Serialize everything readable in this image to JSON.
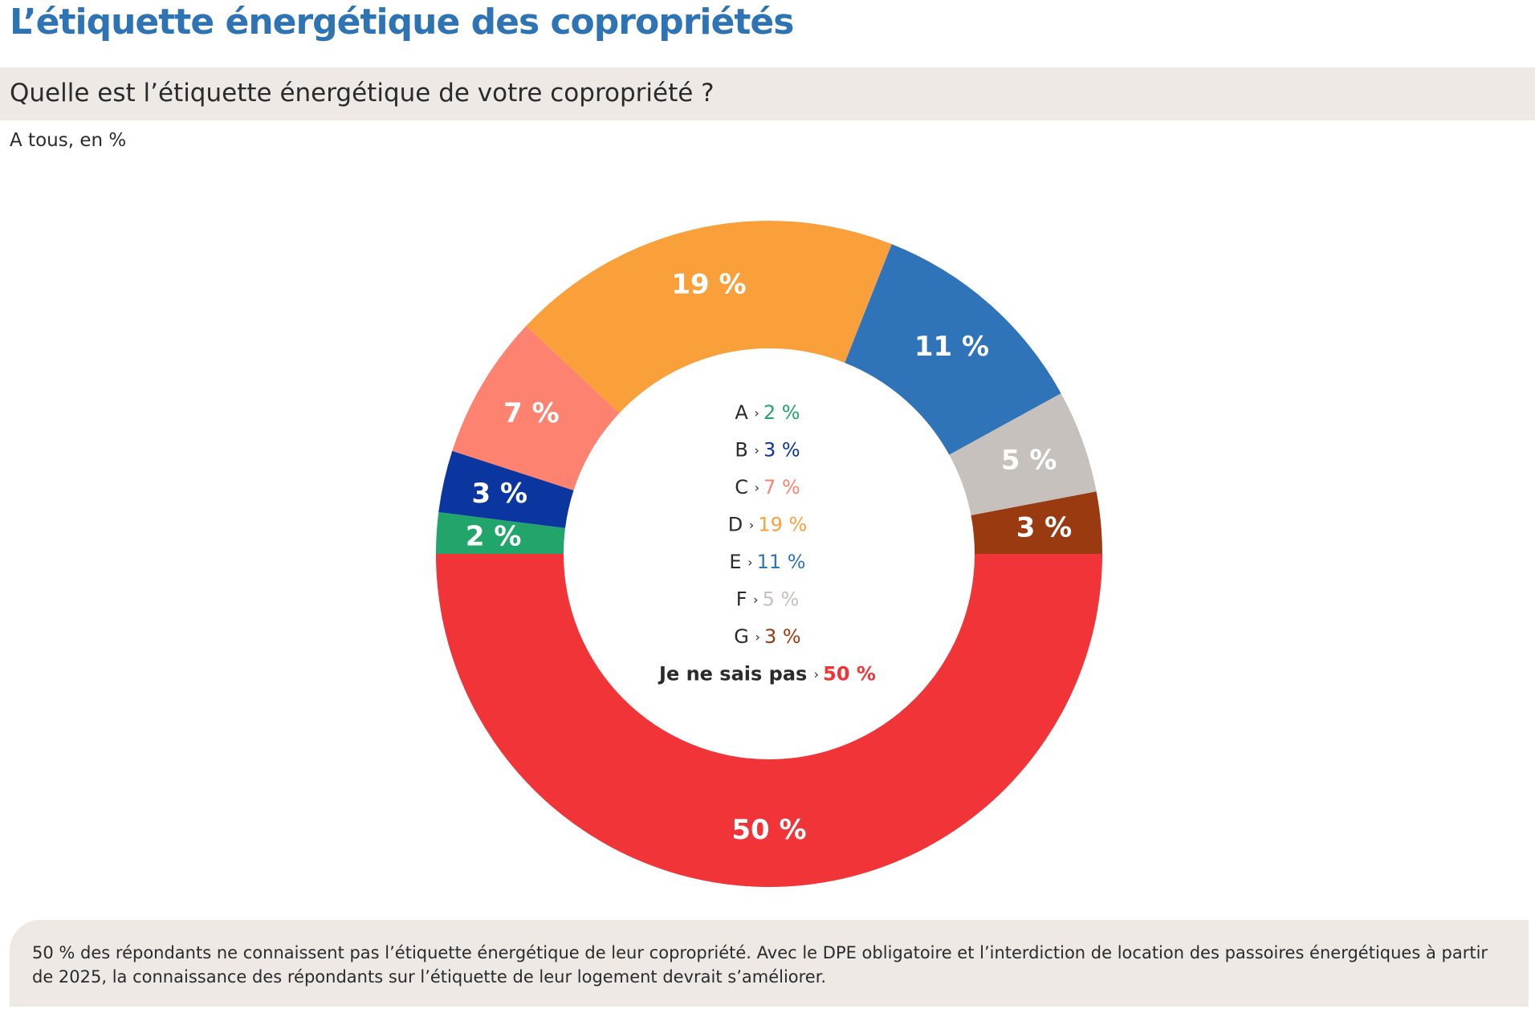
{
  "title": "L’étiquette énergétique des copropriétés",
  "question": "Quelle est l’étiquette énergétique de votre copropriété ?",
  "base": "A tous, en %",
  "chart_data": {
    "type": "pie",
    "variant": "donut",
    "title": "Quelle est l’étiquette énergétique de votre copropriété ?",
    "unit": "%",
    "categories": [
      "A",
      "B",
      "C",
      "D",
      "E",
      "F",
      "G",
      "Je ne sais pas"
    ],
    "values": [
      2,
      3,
      7,
      19,
      11,
      5,
      3,
      50
    ],
    "value_labels": [
      "2 %",
      "3 %",
      "7 %",
      "19 %",
      "11 %",
      "5 %",
      "3 %",
      "50 %"
    ],
    "colors": [
      "#21a56b",
      "#0b36a0",
      "#fd8270",
      "#f9a03b",
      "#2f73b9",
      "#c6c1bd",
      "#9a3a10",
      "#f03438"
    ],
    "legend_placement": "center",
    "legend": [
      {
        "label": "A",
        "value": "2 %",
        "color": "#21a56b"
      },
      {
        "label": "B",
        "value": "3 %",
        "color": "#0b36a0"
      },
      {
        "label": "C",
        "value": "7 %",
        "color": "#fd8270"
      },
      {
        "label": "D",
        "value": "19 %",
        "color": "#f9a03b"
      },
      {
        "label": "E",
        "value": "11 %",
        "color": "#2f73b9"
      },
      {
        "label": "F",
        "value": "5 %",
        "color": "#c6c1bd"
      },
      {
        "label": "G",
        "value": "3 %",
        "color": "#9a3a10"
      },
      {
        "label": "Je ne sais pas",
        "value": "50 %",
        "color": "#f03438"
      }
    ],
    "legend_separator": "›"
  },
  "footnote": "50 % des répondants ne connaissent pas l’étiquette énergétique de leur copropriété. Avec le DPE obligatoire et l’interdiction de location des passoires énergétiques à partir de 2025, la connaissance des répondants sur l’étiquette de leur logement devrait s’améliorer."
}
